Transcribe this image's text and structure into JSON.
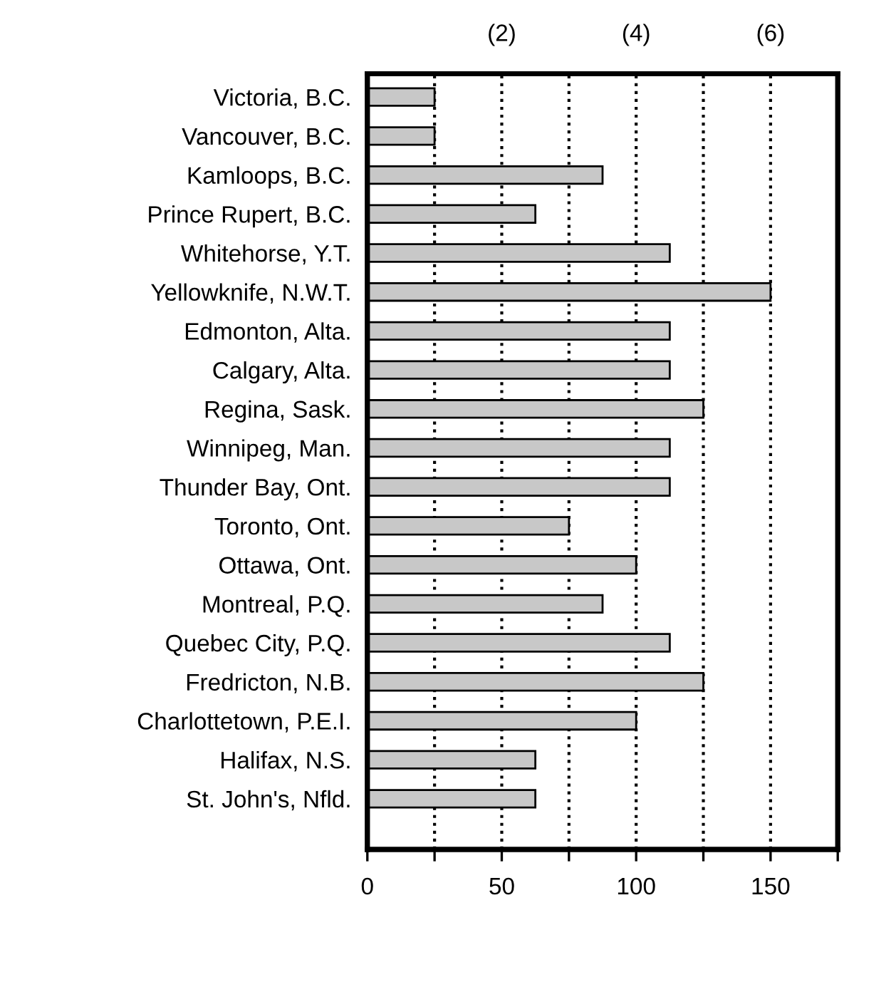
{
  "chart_data": {
    "type": "bar",
    "orientation": "horizontal",
    "categories": [
      "Victoria, B.C.",
      "Vancouver, B.C.",
      "Kamloops, B.C.",
      "Prince Rupert, B.C.",
      "Whitehorse, Y.T.",
      "Yellowknife, N.W.T.",
      "Edmonton, Alta.",
      "Calgary, Alta.",
      "Regina, Sask.",
      "Winnipeg, Man.",
      "Thunder Bay, Ont.",
      "Toronto, Ont.",
      "Ottawa, Ont.",
      "Montreal, P.Q.",
      "Quebec City, P.Q.",
      "Fredricton, N.B.",
      "Charlottetown, P.E.I.",
      "Halifax, N.S.",
      "St. John's, Nfld."
    ],
    "values": [
      25,
      25,
      87.5,
      62.5,
      112.5,
      150,
      112.5,
      112.5,
      125,
      112.5,
      112.5,
      75,
      100,
      87.5,
      112.5,
      125,
      100,
      62.5,
      62.5
    ],
    "color": "#c8c8c8",
    "xlim": [
      0,
      175
    ],
    "xticks": [
      0,
      {
        "value": 25,
        "label": null
      },
      50,
      {
        "value": 75,
        "label": null
      },
      100,
      {
        "value": 125,
        "label": null
      },
      150,
      {
        "value": 175,
        "label": null
      }
    ],
    "x2lim": [
      0,
      7
    ],
    "x2ticks": [
      {
        "value": 2,
        "label": "(2)"
      },
      {
        "value": 4,
        "label": "(4)"
      },
      {
        "value": 6,
        "label": "(6)"
      }
    ],
    "grid": "x",
    "line_style": "dotted"
  }
}
